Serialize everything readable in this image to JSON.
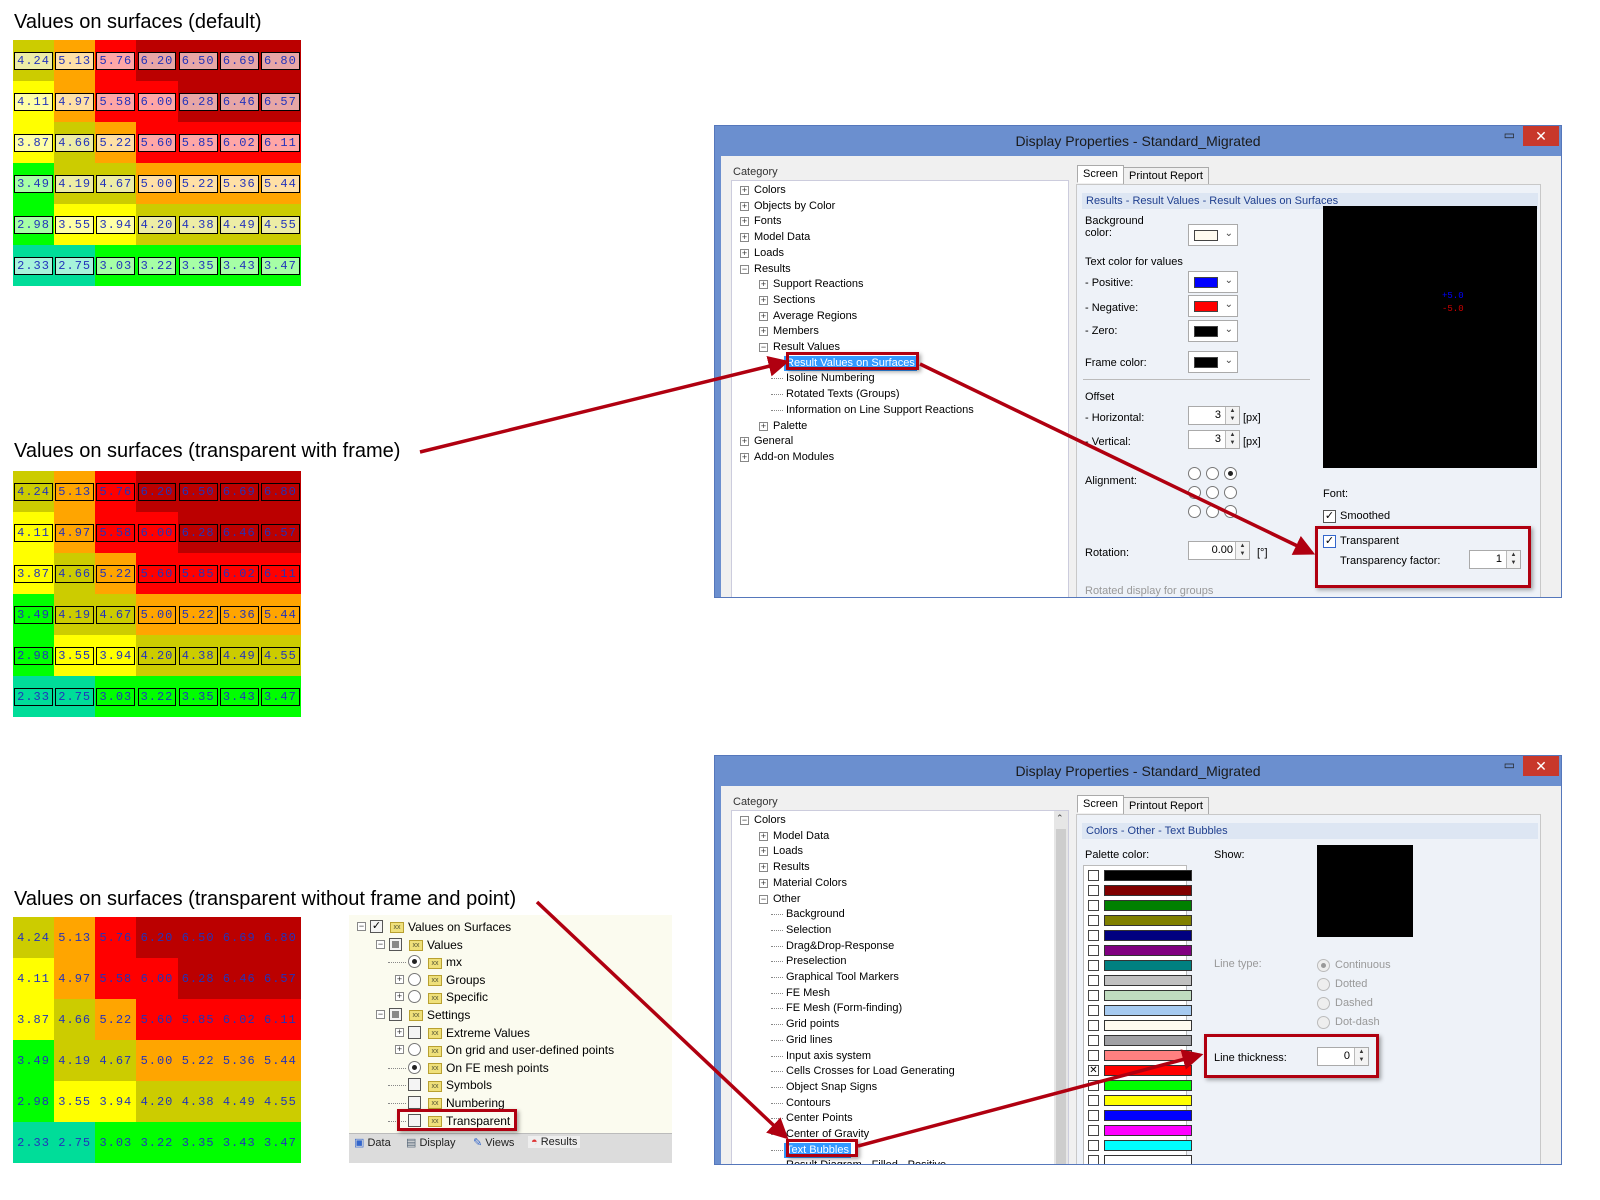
{
  "headings": {
    "default": "Values on surfaces (default)",
    "transparent_frame": "Values on surfaces (transparent with frame)",
    "transparent_noframe": "Values on surfaces (transparent without frame and point)"
  },
  "grid": {
    "values": [
      [
        "4.24",
        "5.13",
        "5.76",
        "6.20",
        "6.50",
        "6.69",
        "6.80"
      ],
      [
        "4.11",
        "4.97",
        "5.58",
        "6.00",
        "6.28",
        "6.46",
        "6.57"
      ],
      [
        "3.87",
        "4.66",
        "5.22",
        "5.60",
        "5.85",
        "6.02",
        "6.11"
      ],
      [
        "3.49",
        "4.19",
        "4.67",
        "5.00",
        "5.22",
        "5.36",
        "5.44"
      ],
      [
        "2.98",
        "3.55",
        "3.94",
        "4.20",
        "4.38",
        "4.49",
        "4.55"
      ],
      [
        "2.33",
        "2.75",
        "3.03",
        "3.22",
        "3.35",
        "3.43",
        "3.47"
      ]
    ],
    "colors": [
      [
        "#cccc00",
        "#ffa500",
        "#ff0000",
        "#bb0000",
        "#bb0000",
        "#bb0000",
        "#bb0000"
      ],
      [
        "#ffff00",
        "#ffa500",
        "#ff0000",
        "#ff0000",
        "#bb0000",
        "#bb0000",
        "#bb0000"
      ],
      [
        "#ffff00",
        "#cccc00",
        "#ffa500",
        "#ff0000",
        "#ff0000",
        "#ff0000",
        "#ff0000"
      ],
      [
        "#00ff00",
        "#cccc00",
        "#cccc00",
        "#ffa500",
        "#ffa500",
        "#ffa500",
        "#ffa500"
      ],
      [
        "#00ff00",
        "#ffff00",
        "#ffff00",
        "#cccc00",
        "#cccc00",
        "#cccc00",
        "#cccc00"
      ],
      [
        "#00dd99",
        "#00dd99",
        "#00ff00",
        "#00ff00",
        "#00ff00",
        "#00ff00",
        "#00ff00"
      ]
    ]
  },
  "dialog1": {
    "title": "Display Properties - Standard_Migrated",
    "category_label": "Category",
    "tree": [
      {
        "label": "Colors",
        "level": 0,
        "exp": "+"
      },
      {
        "label": "Objects by Color",
        "level": 0,
        "exp": "+"
      },
      {
        "label": "Fonts",
        "level": 0,
        "exp": "+"
      },
      {
        "label": "Model Data",
        "level": 0,
        "exp": "+"
      },
      {
        "label": "Loads",
        "level": 0,
        "exp": "+"
      },
      {
        "label": "Results",
        "level": 0,
        "exp": "-"
      },
      {
        "label": "Support Reactions",
        "level": 1,
        "exp": "+"
      },
      {
        "label": "Sections",
        "level": 1,
        "exp": "+"
      },
      {
        "label": "Average Regions",
        "level": 1,
        "exp": "+"
      },
      {
        "label": "Members",
        "level": 1,
        "exp": "+"
      },
      {
        "label": "Result Values",
        "level": 1,
        "exp": "-"
      },
      {
        "label": "Result Values on Surfaces",
        "level": 2,
        "exp": "",
        "selected": true
      },
      {
        "label": "Isoline Numbering",
        "level": 2,
        "exp": ""
      },
      {
        "label": "Rotated Texts (Groups)",
        "level": 2,
        "exp": ""
      },
      {
        "label": "Information on Line Support Reactions",
        "level": 2,
        "exp": ""
      },
      {
        "label": "Palette",
        "level": 1,
        "exp": "+"
      },
      {
        "label": "General",
        "level": 0,
        "exp": "+"
      },
      {
        "label": "Add-on Modules",
        "level": 0,
        "exp": "+"
      }
    ],
    "tabs": [
      "Screen",
      "Printout Report"
    ],
    "band": "Results - Result Values - Result Values on Surfaces",
    "bg_label": "Background color:",
    "bg_color": "#fffbf0",
    "text_color_label": "Text color for values",
    "positive_label": "- Positive:",
    "positive_color": "#0000ff",
    "negative_label": "- Negative:",
    "negative_color": "#ff0000",
    "zero_label": "- Zero:",
    "zero_color": "#000000",
    "frame_label": "Frame color:",
    "frame_color": "#000000",
    "offset_label": "Offset",
    "horizontal_label": "- Horizontal:",
    "horizontal_value": "3",
    "vertical_label": "- Vertical:",
    "vertical_value": "3",
    "unit_px": "[px]",
    "alignment_label": "Alignment:",
    "rotation_label": "Rotation:",
    "rotation_value": "0.00",
    "rotation_unit": "[°]",
    "rotated_groups_label": "Rotated display for groups",
    "preview_pos": "+5.0",
    "preview_neg": "-5.0",
    "font_label": "Font:",
    "smoothed_label": "Smoothed",
    "smoothed": true,
    "transparent_label": "Transparent",
    "transparent": true,
    "transparency_factor_label": "Transparency factor:",
    "transparency_factor": "1"
  },
  "dialog2": {
    "title": "Display Properties - Standard_Migrated",
    "category_label": "Category",
    "tree": [
      {
        "label": "Colors",
        "level": 0,
        "exp": "-"
      },
      {
        "label": "Model Data",
        "level": 1,
        "exp": "+"
      },
      {
        "label": "Loads",
        "level": 1,
        "exp": "+"
      },
      {
        "label": "Results",
        "level": 1,
        "exp": "+"
      },
      {
        "label": "Material Colors",
        "level": 1,
        "exp": "+"
      },
      {
        "label": "Other",
        "level": 1,
        "exp": "-"
      },
      {
        "label": "Background",
        "level": 2,
        "exp": ""
      },
      {
        "label": "Selection",
        "level": 2,
        "exp": ""
      },
      {
        "label": "Drag&Drop-Response",
        "level": 2,
        "exp": ""
      },
      {
        "label": "Preselection",
        "level": 2,
        "exp": ""
      },
      {
        "label": "Graphical Tool Markers",
        "level": 2,
        "exp": ""
      },
      {
        "label": "FE Mesh",
        "level": 2,
        "exp": ""
      },
      {
        "label": "FE Mesh (Form-finding)",
        "level": 2,
        "exp": ""
      },
      {
        "label": "Grid points",
        "level": 2,
        "exp": ""
      },
      {
        "label": "Grid lines",
        "level": 2,
        "exp": ""
      },
      {
        "label": "Input axis system",
        "level": 2,
        "exp": ""
      },
      {
        "label": "Cells Crosses for Load Generating",
        "level": 2,
        "exp": ""
      },
      {
        "label": "Object Snap Signs",
        "level": 2,
        "exp": ""
      },
      {
        "label": "Contours",
        "level": 2,
        "exp": ""
      },
      {
        "label": "Center Points",
        "level": 2,
        "exp": ""
      },
      {
        "label": "Center of Gravity",
        "level": 2,
        "exp": ""
      },
      {
        "label": "Text Bubbles",
        "level": 2,
        "exp": "",
        "selected": true
      },
      {
        "label": "Result Diagram - Filled - Positive",
        "level": 2,
        "exp": ""
      }
    ],
    "tabs": [
      "Screen",
      "Printout Report"
    ],
    "band": "Colors - Other - Text Bubbles",
    "palette_label": "Palette color:",
    "palette": [
      "#000000",
      "#800000",
      "#008000",
      "#808000",
      "#000080",
      "#800080",
      "#008080",
      "#c0c0c0",
      "#c0dcc0",
      "#a6caf0",
      "#fffbf0",
      "#a0a0a4",
      "#ff8080",
      "#ff0000",
      "#00ff00",
      "#ffff00",
      "#0000ff",
      "#ff00ff",
      "#00ffff",
      "#ffffff"
    ],
    "palette_selected": 13,
    "show_label": "Show:",
    "show_color": "#000000",
    "line_type_label": "Line type:",
    "line_types": [
      "Continuous",
      "Dotted",
      "Dashed",
      "Dot-dash"
    ],
    "line_type_selected": 0,
    "line_thickness_label": "Line thickness:",
    "line_thickness": "0"
  },
  "navigator": {
    "items": [
      {
        "label": "Values on Surfaces",
        "level": 0,
        "exp": "-",
        "ctrl": "check-on"
      },
      {
        "label": "Values",
        "level": 1,
        "exp": "-",
        "ctrl": "check-part"
      },
      {
        "label": "mx",
        "level": 2,
        "exp": "",
        "ctrl": "radio-on"
      },
      {
        "label": "Groups",
        "level": 2,
        "exp": "+",
        "ctrl": "radio"
      },
      {
        "label": "Specific",
        "level": 2,
        "exp": "+",
        "ctrl": "radio"
      },
      {
        "label": "Settings",
        "level": 1,
        "exp": "-",
        "ctrl": "check-part"
      },
      {
        "label": "Extreme Values",
        "level": 2,
        "exp": "+",
        "ctrl": "check"
      },
      {
        "label": "On grid and user-defined points",
        "level": 2,
        "exp": "+",
        "ctrl": "radio"
      },
      {
        "label": "On FE mesh points",
        "level": 2,
        "exp": "",
        "ctrl": "radio-on"
      },
      {
        "label": "Symbols",
        "level": 2,
        "exp": "",
        "ctrl": "check"
      },
      {
        "label": "Numbering",
        "level": 2,
        "exp": "",
        "ctrl": "check"
      },
      {
        "label": "Transparent",
        "level": 2,
        "exp": "",
        "ctrl": "check"
      }
    ],
    "tabs": [
      "Data",
      "Display",
      "Views",
      "Results"
    ]
  },
  "accent_color": "#b00010"
}
